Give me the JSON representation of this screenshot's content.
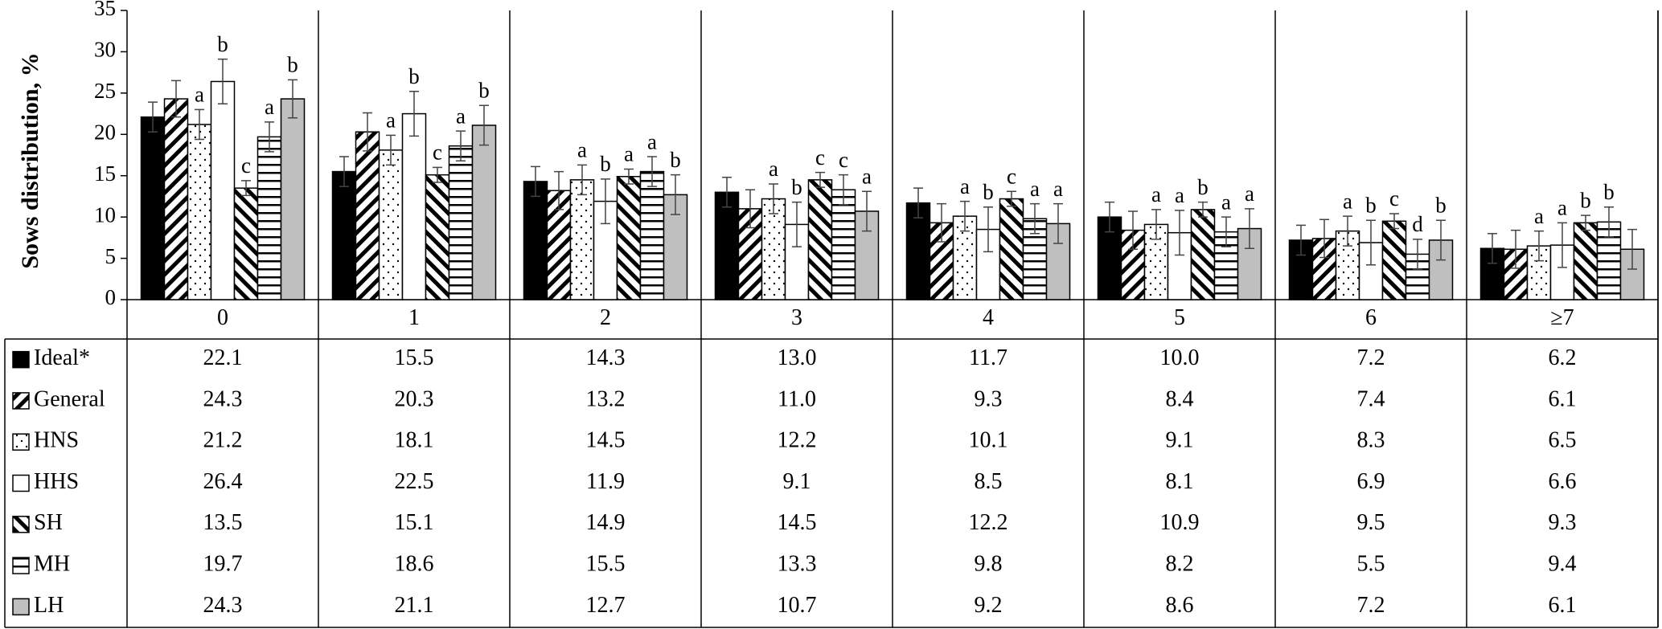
{
  "chart_data": {
    "type": "bar",
    "y_label": "Sows distribution, %",
    "categories": [
      "0",
      "1",
      "2",
      "3",
      "4",
      "5",
      "6",
      "≥7"
    ],
    "ylim": [
      0,
      35
    ],
    "yticks": [
      0,
      5,
      10,
      15,
      20,
      25,
      30,
      35
    ],
    "series": [
      {
        "name": "Ideal*",
        "color": "#000000",
        "pattern": "solid",
        "values": [
          22.1,
          15.5,
          14.3,
          13.0,
          11.7,
          10.0,
          7.2,
          6.2
        ],
        "value_labels": [
          "22.1",
          "15.5",
          "14.3",
          "13.0",
          "11.7",
          "10.0",
          "7.2",
          "6.2"
        ],
        "errors": [
          1.8,
          1.8,
          1.8,
          1.8,
          1.8,
          1.8,
          1.8,
          1.8
        ]
      },
      {
        "name": "General",
        "color": "#000000",
        "pattern": "diagonal-up",
        "values": [
          24.3,
          20.3,
          13.2,
          11.0,
          9.3,
          8.4,
          7.4,
          6.1
        ],
        "value_labels": [
          "24.3",
          "20.3",
          "13.2",
          "11.0",
          "9.3",
          "8.4",
          "7.4",
          "6.1"
        ],
        "errors": [
          2.2,
          2.3,
          2.3,
          2.3,
          2.3,
          2.3,
          2.3,
          2.3
        ]
      },
      {
        "name": "HNS",
        "color": "#000000",
        "pattern": "dots",
        "values": [
          21.2,
          18.1,
          14.5,
          12.2,
          10.1,
          9.1,
          8.3,
          6.5
        ],
        "value_labels": [
          "21.2",
          "18.1",
          "14.5",
          "12.2",
          "10.1",
          "9.1",
          "8.3",
          "6.5"
        ],
        "errors": [
          1.8,
          1.8,
          1.8,
          1.8,
          1.8,
          1.8,
          1.8,
          1.8
        ],
        "letters": [
          "a",
          "a",
          "a",
          "a",
          "a",
          "a",
          "a",
          "a"
        ]
      },
      {
        "name": "HHS",
        "color": "#000000",
        "pattern": "white",
        "values": [
          26.4,
          22.5,
          11.9,
          9.1,
          8.5,
          8.1,
          6.9,
          6.6
        ],
        "value_labels": [
          "26.4",
          "22.5",
          "11.9",
          "9.1",
          "8.5",
          "8.1",
          "6.9",
          "6.6"
        ],
        "errors": [
          2.7,
          2.7,
          2.7,
          2.7,
          2.7,
          2.7,
          2.7,
          2.7
        ],
        "letters": [
          "b",
          "b",
          "b",
          "b",
          "b",
          "a",
          "b",
          "a"
        ]
      },
      {
        "name": "SH",
        "color": "#000000",
        "pattern": "diagonal-down",
        "values": [
          13.5,
          15.1,
          14.9,
          14.5,
          12.2,
          10.9,
          9.5,
          9.3
        ],
        "value_labels": [
          "13.5",
          "15.1",
          "14.9",
          "14.5",
          "12.2",
          "10.9",
          "9.5",
          "9.3"
        ],
        "errors": [
          0.9,
          0.9,
          0.9,
          0.9,
          0.9,
          0.9,
          0.9,
          0.9
        ],
        "letters": [
          "c",
          "c",
          "a",
          "c",
          "c",
          "b",
          "c",
          "b"
        ]
      },
      {
        "name": "MH",
        "color": "#000000",
        "pattern": "horizontal",
        "values": [
          19.7,
          18.6,
          15.5,
          13.3,
          9.8,
          8.2,
          5.5,
          9.4
        ],
        "value_labels": [
          "19.7",
          "18.6",
          "15.5",
          "13.3",
          "9.8",
          "8.2",
          "5.5",
          "9.4"
        ],
        "errors": [
          1.8,
          1.8,
          1.8,
          1.8,
          1.8,
          1.8,
          1.8,
          1.8
        ],
        "letters": [
          "a",
          "a",
          "a",
          "c",
          "a",
          "a",
          "d",
          "b"
        ]
      },
      {
        "name": "LH",
        "color": "#bfbfbf",
        "pattern": "solid",
        "values": [
          24.3,
          21.1,
          12.7,
          10.7,
          9.2,
          8.6,
          7.2,
          6.1
        ],
        "value_labels": [
          "24.3",
          "21.1",
          "12.7",
          "10.7",
          "9.2",
          "8.6",
          "7.2",
          "6.1"
        ],
        "errors": [
          2.3,
          2.4,
          2.4,
          2.4,
          2.4,
          2.4,
          2.4,
          2.4
        ],
        "letters": [
          "b",
          "b",
          "b",
          "a",
          "a",
          "a",
          "b",
          null
        ]
      }
    ]
  }
}
